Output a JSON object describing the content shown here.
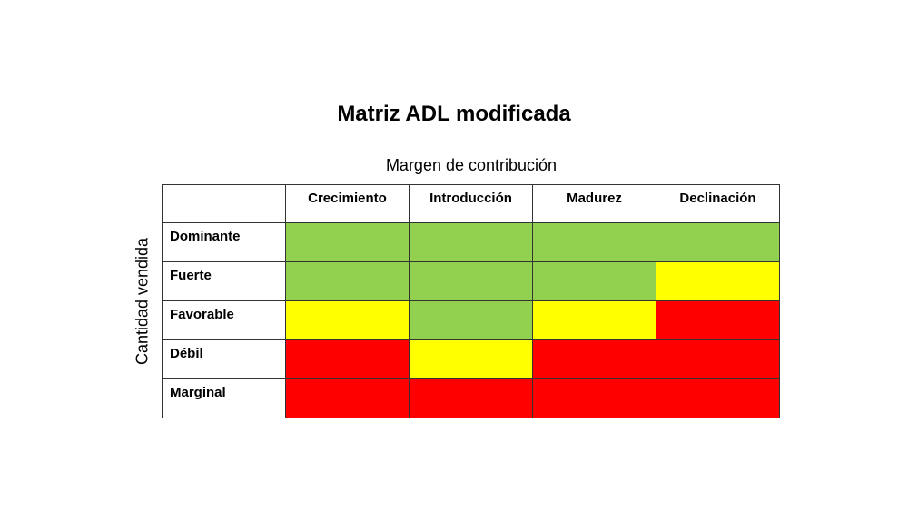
{
  "title": "Matriz ADL modificada",
  "x_axis_label": "Margen de contribución",
  "y_axis_label": "Cantidad vendida",
  "columns": [
    "Crecimiento",
    "Introducción",
    "Madurez",
    "Declinación"
  ],
  "rows": [
    {
      "label": "Dominante",
      "cells": [
        "green",
        "green",
        "green",
        "green"
      ]
    },
    {
      "label": "Fuerte",
      "cells": [
        "green",
        "green",
        "green",
        "yellow"
      ]
    },
    {
      "label": "Favorable",
      "cells": [
        "yellow",
        "green",
        "yellow",
        "red"
      ]
    },
    {
      "label": "Débil",
      "cells": [
        "red",
        "yellow",
        "red",
        "red"
      ]
    },
    {
      "label": "Marginal",
      "cells": [
        "red",
        "red",
        "red",
        "red"
      ]
    }
  ],
  "colors": {
    "green": "#92d050",
    "yellow": "#ffff00",
    "red": "#ff0000"
  }
}
